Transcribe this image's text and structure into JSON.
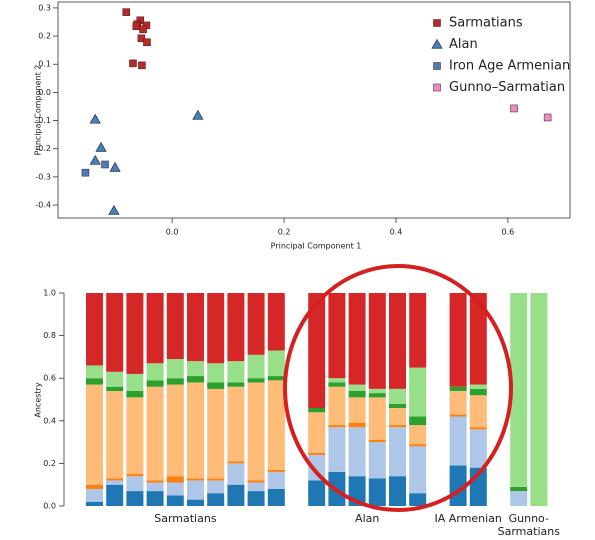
{
  "chart_data": [
    {
      "type": "scatter",
      "xlabel": "Principal Component 1",
      "ylabel": "Principal Component 2",
      "xlim": [
        -0.204,
        0.711
      ],
      "ylim": [
        -0.446,
        0.321
      ],
      "xticks": [
        {
          "value": 0,
          "label": "0.0"
        },
        0.2,
        0.4,
        0.6
      ],
      "yticks": [
        0.3,
        0.2,
        0.1,
        {
          "value": 0,
          "label": "0.0"
        },
        -0.1,
        -0.2,
        -0.3,
        -0.4
      ],
      "legend": "top-right",
      "series": [
        {
          "name": "Sarmatians",
          "color": "#b52a2a",
          "marker": "square",
          "x": [
            -0.082,
            -0.057,
            -0.0625,
            -0.046,
            -0.064,
            -0.052,
            -0.055,
            -0.045,
            -0.07,
            -0.054
          ],
          "y": [
            0.285,
            0.256,
            0.242,
            0.238,
            0.235,
            0.224,
            0.192,
            0.178,
            0.103,
            0.096
          ]
        },
        {
          "name": "Alan",
          "color": "#4a7ebb",
          "marker": "triangle",
          "x": [
            -0.1375,
            -0.127,
            -0.1375,
            -0.102,
            0.046,
            -0.104
          ],
          "y": [
            -0.096,
            -0.196,
            -0.242,
            -0.267,
            -0.082,
            -0.42
          ]
        },
        {
          "name": "Iron Age Armenian",
          "color": "#4a7ebb",
          "marker": "square",
          "x": [
            -0.155,
            -0.12
          ],
          "y": [
            -0.285,
            -0.256
          ]
        },
        {
          "name": "Gunno–Sarmatian",
          "color": "#e68fc6",
          "marker": "square",
          "x": [
            0.611,
            0.671
          ],
          "y": [
            -0.057,
            -0.089
          ]
        }
      ]
    },
    {
      "type": "stacked-bar",
      "ylabel": "Ancestry",
      "ylim": [
        0,
        1
      ],
      "yticks": [
        {
          "value": 0,
          "label": "0.0"
        },
        0.2,
        0.4,
        0.6,
        0.8,
        {
          "value": 1,
          "label": "1.0"
        }
      ],
      "colors": [
        "#1f77b4",
        "#aec7e8",
        "#ff7f0e",
        "#ffbb78",
        "#2ca02c",
        "#98df8a",
        "#d62728"
      ],
      "groups": [
        {
          "label": "Sarmatians",
          "bars": [
            [
              0.02,
              0.06,
              0.02,
              0.47,
              0.03,
              0.06,
              0.34
            ],
            [
              0.1,
              0.02,
              0.01,
              0.41,
              0.02,
              0.07,
              0.37
            ],
            [
              0.07,
              0.07,
              0.01,
              0.36,
              0.03,
              0.08,
              0.38
            ],
            [
              0.07,
              0.04,
              0.01,
              0.44,
              0.03,
              0.08,
              0.33
            ],
            [
              0.05,
              0.06,
              0.03,
              0.43,
              0.03,
              0.09,
              0.31
            ],
            [
              0.03,
              0.09,
              0.01,
              0.45,
              0.03,
              0.07,
              0.32
            ],
            [
              0.06,
              0.06,
              0.01,
              0.42,
              0.03,
              0.09,
              0.33
            ],
            [
              0.1,
              0.1,
              0.01,
              0.35,
              0.02,
              0.1,
              0.32
            ],
            [
              0.07,
              0.04,
              0.01,
              0.46,
              0.02,
              0.11,
              0.29
            ],
            [
              0.08,
              0.08,
              0.01,
              0.42,
              0.02,
              0.12,
              0.27
            ]
          ]
        },
        {
          "label": "Alan",
          "bars": [
            [
              0.12,
              0.12,
              0.01,
              0.19,
              0.02,
              0,
              0.54
            ],
            [
              0.16,
              0.21,
              0.01,
              0.18,
              0.02,
              0.02,
              0.4
            ],
            [
              0.14,
              0.23,
              0.02,
              0.12,
              0.03,
              0.03,
              0.43
            ],
            [
              0.13,
              0.17,
              0.01,
              0.2,
              0.02,
              0.02,
              0.45
            ],
            [
              0.14,
              0.23,
              0.01,
              0.08,
              0.02,
              0.07,
              0.45
            ],
            [
              0.06,
              0.22,
              0.01,
              0.09,
              0.04,
              0.23,
              0.35
            ]
          ]
        },
        {
          "label": "IA Armenian",
          "bars": [
            [
              0.19,
              0.23,
              0.01,
              0.11,
              0.02,
              0,
              0.44
            ],
            [
              0.18,
              0.18,
              0.01,
              0.15,
              0.03,
              0.02,
              0.43
            ]
          ]
        },
        {
          "label": "Gunno-\nSarmatians",
          "bars": [
            [
              0,
              0.07,
              0,
              0,
              0.02,
              0.91,
              0
            ],
            [
              0,
              0,
              0,
              0,
              0,
              1,
              0
            ]
          ]
        }
      ]
    }
  ]
}
